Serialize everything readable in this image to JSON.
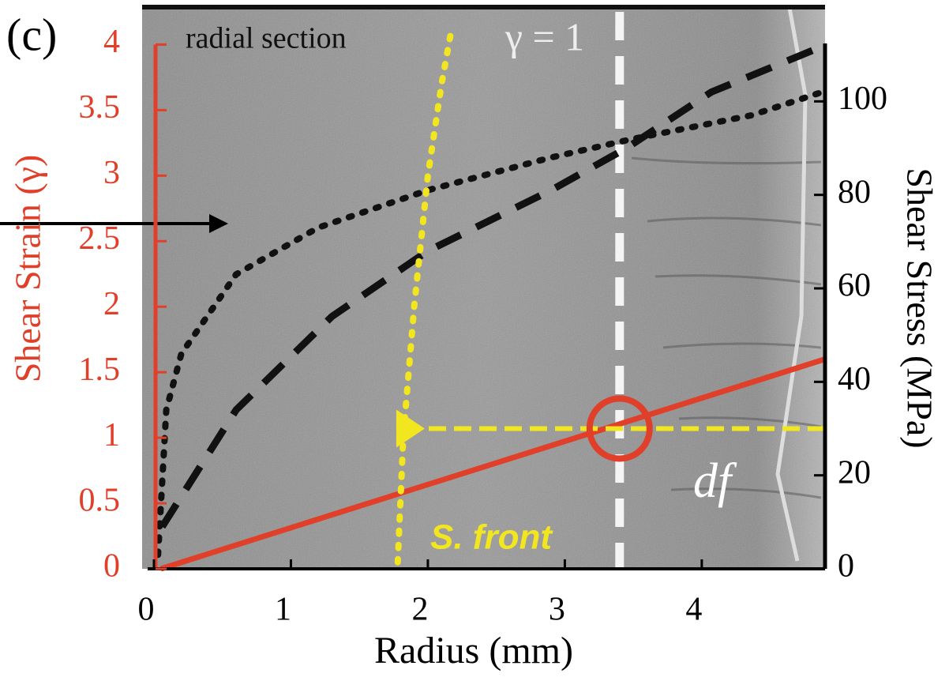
{
  "chart_data": {
    "type": "line",
    "xlabel": "Radius (mm)",
    "ylabel": "Shear Strain (γ)",
    "y2label": "Shear Stress (MPa)",
    "xlim": [
      0,
      4.9
    ],
    "xticks": [
      0,
      1,
      2,
      3,
      4
    ],
    "ylim": [
      0,
      4.28
    ],
    "yticks": [
      0,
      0.5,
      1,
      1.5,
      2,
      2.5,
      3,
      3.5,
      4
    ],
    "y2lim": [
      0,
      120
    ],
    "y2ticks": [
      0,
      20,
      40,
      60,
      80,
      100
    ],
    "ycolor": "#e0402a",
    "series": [
      {
        "color": "#e0402a",
        "style": "solid",
        "axis": "y",
        "x": [
          0.05,
          4.9
        ],
        "values": [
          0,
          1.6
        ]
      },
      {
        "color": "#111111",
        "style": "dashed",
        "axis": "y2",
        "x": [
          0.06,
          0.6,
          1.3,
          2.0,
          2.9,
          3.45,
          4.07,
          4.9
        ],
        "values": [
          9,
          34,
          54,
          68,
          81,
          90,
          102,
          112
        ]
      },
      {
        "color": "#111111",
        "style": "dotted",
        "axis": "y2",
        "x": [
          0.03,
          0.09,
          0.2,
          0.6,
          1.2,
          2.0,
          2.9,
          3.5,
          4.36,
          4.88
        ],
        "values": [
          3,
          34,
          46,
          63,
          73,
          81,
          88,
          92,
          97,
          102
        ]
      },
      {
        "color": "#f2e620",
        "style": "dotted",
        "axis": "y",
        "x": [
          1.78,
          1.82,
          1.9,
          2.0,
          2.1,
          2.17
        ],
        "values": [
          0.05,
          1.0,
          2.0,
          3.0,
          3.7,
          4.1
        ]
      }
    ],
    "annotations": {
      "panel": "(c)",
      "section": "radial section",
      "gamma_line": {
        "label": "γ = 1",
        "x": 3.4
      },
      "front_label": "S. front",
      "df_label": "df",
      "front_arrow": {
        "x": [
          4.9,
          1.85
        ],
        "y": 1.07
      },
      "marker": {
        "x": 3.4,
        "y": 1.07
      }
    }
  }
}
